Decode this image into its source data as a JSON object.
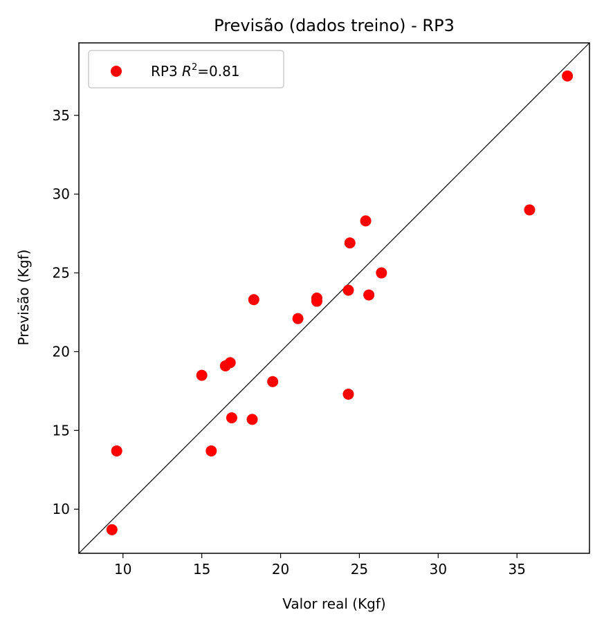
{
  "chart_data": {
    "type": "scatter",
    "title": "Previsão (dados treino) - RP3",
    "xlabel": "Valor real (Kgf)",
    "ylabel": "Previsão (Kgf)",
    "xlim": [
      7.2,
      39.6
    ],
    "ylim": [
      7.2,
      39.6
    ],
    "xticks": [
      10,
      15,
      20,
      25,
      30,
      35
    ],
    "yticks": [
      10,
      15,
      20,
      25,
      30,
      35
    ],
    "grid": false,
    "legend_position": "top-left",
    "legend": {
      "prefix": "RP3 ",
      "symbol": "R",
      "superscript": "2",
      "suffix": "=0.81"
    },
    "reference_line": {
      "kind": "identity",
      "color": "#000000"
    },
    "series": [
      {
        "color": "#ff0000",
        "points": [
          {
            "x": 9.3,
            "y": 8.7
          },
          {
            "x": 9.6,
            "y": 13.7
          },
          {
            "x": 15.0,
            "y": 18.5
          },
          {
            "x": 15.6,
            "y": 13.7
          },
          {
            "x": 16.5,
            "y": 19.1
          },
          {
            "x": 16.8,
            "y": 19.3
          },
          {
            "x": 16.9,
            "y": 15.8
          },
          {
            "x": 18.2,
            "y": 15.7
          },
          {
            "x": 18.3,
            "y": 23.3
          },
          {
            "x": 19.5,
            "y": 18.1
          },
          {
            "x": 21.1,
            "y": 22.1
          },
          {
            "x": 22.3,
            "y": 23.2
          },
          {
            "x": 22.3,
            "y": 23.4
          },
          {
            "x": 24.3,
            "y": 17.3
          },
          {
            "x": 24.3,
            "y": 23.9
          },
          {
            "x": 24.4,
            "y": 26.9
          },
          {
            "x": 25.4,
            "y": 28.3
          },
          {
            "x": 25.6,
            "y": 23.6
          },
          {
            "x": 26.4,
            "y": 25.0
          },
          {
            "x": 35.8,
            "y": 29.0
          },
          {
            "x": 38.2,
            "y": 37.5
          }
        ]
      }
    ]
  }
}
